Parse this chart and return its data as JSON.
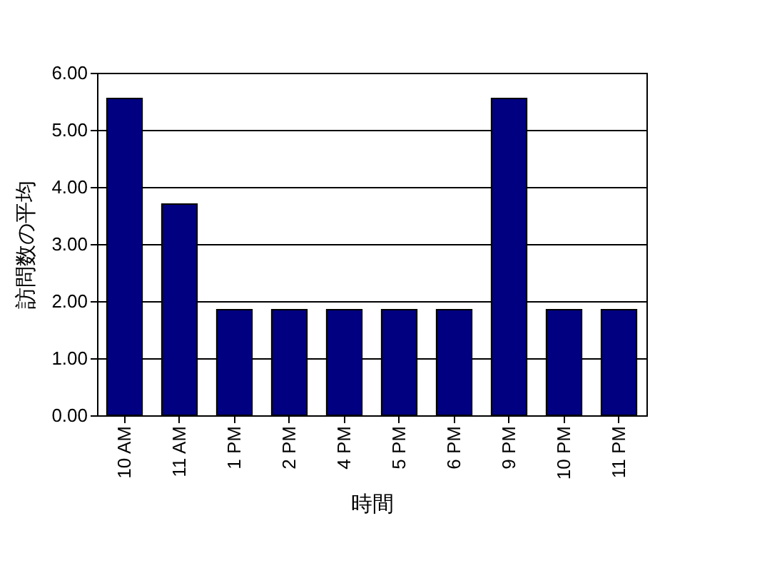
{
  "chart_data": {
    "type": "bar",
    "xlabel": "時間",
    "ylabel": "訪問数の平均",
    "categories": [
      "10 AM",
      "11 AM",
      "1 PM",
      "2 PM",
      "4 PM",
      "5 PM",
      "6 PM",
      "9 PM",
      "10 PM",
      "11 PM"
    ],
    "values": [
      5.55,
      3.7,
      1.85,
      1.85,
      1.85,
      1.85,
      1.85,
      5.55,
      1.85,
      1.85
    ],
    "color": "#000080",
    "ylim": [
      0,
      6
    ],
    "yticks": [
      {
        "value": 0,
        "label": "0.00"
      },
      {
        "value": 1,
        "label": "1.00"
      },
      {
        "value": 2,
        "label": "2.00"
      },
      {
        "value": 3,
        "label": "3.00"
      },
      {
        "value": 4,
        "label": "4.00"
      },
      {
        "value": 5,
        "label": "5.00"
      },
      {
        "value": 6,
        "label": "6.00"
      }
    ],
    "grid": "y"
  }
}
